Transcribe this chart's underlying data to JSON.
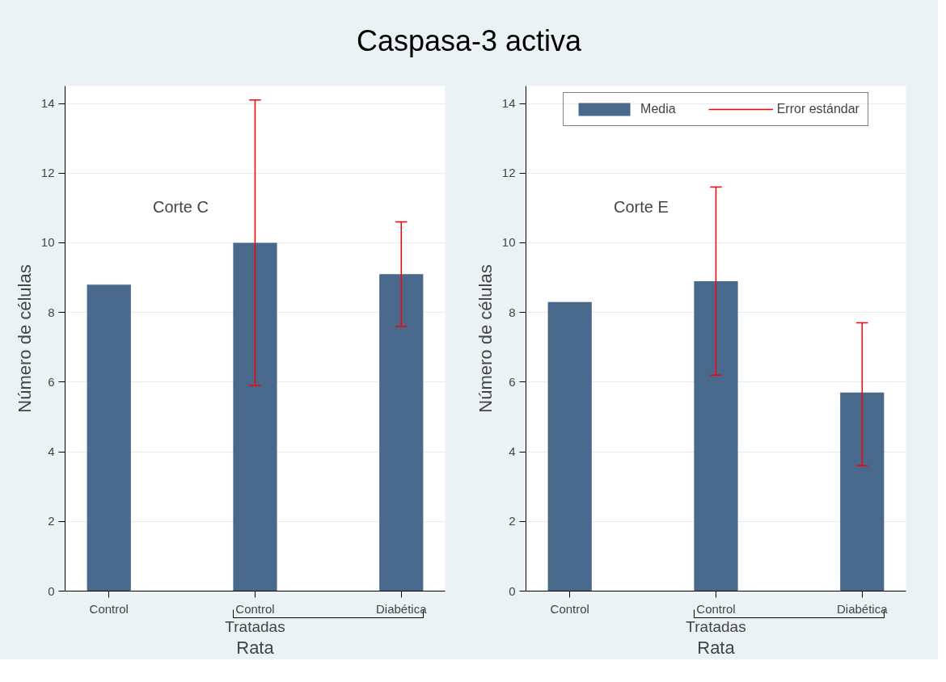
{
  "chart_data": [
    {
      "type": "bar",
      "title": "Caspasa-3 activa",
      "categories": [
        "Control",
        "Control",
        "Diabética"
      ],
      "xlabel": "Rata",
      "ylabel": "Número de células",
      "ylim": [
        0,
        14.5
      ],
      "yticks": [
        0,
        2,
        4,
        6,
        8,
        10,
        12,
        14
      ],
      "grid": "y",
      "legend": false,
      "series": [
        {
          "color": "#48698c",
          "values": [
            8.8,
            10.0,
            9.1
          ],
          "errors": [
            null,
            [
              5.9,
              14.1
            ],
            [
              7.6,
              10.6
            ]
          ]
        }
      ],
      "annotations": [
        "Corte C",
        "Tratadas"
      ]
    },
    {
      "type": "bar",
      "categories": [
        "Control",
        "Control",
        "Diabética"
      ],
      "xlabel": "Rata",
      "ylabel": "Número de células",
      "ylim": [
        0,
        14.5
      ],
      "yticks": [
        0,
        2,
        4,
        6,
        8,
        10,
        12,
        14
      ],
      "grid": "y",
      "legend": "top",
      "series": [
        {
          "name": "Media",
          "color": "#48698c",
          "values": [
            8.3,
            8.9,
            5.7
          ],
          "errors": [
            null,
            [
              6.2,
              11.6
            ],
            [
              3.6,
              7.7
            ]
          ]
        }
      ],
      "annotations": [
        "Corte E",
        "Tratadas",
        "Error estándar"
      ]
    }
  ]
}
